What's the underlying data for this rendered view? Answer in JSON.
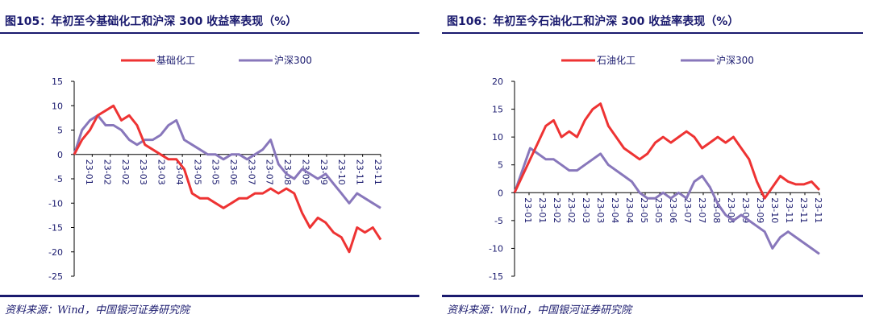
{
  "chart_data": [
    {
      "type": "line",
      "title": "图105：年初至今基础化工和沪深 300 收益率表现（%）",
      "source": "资料来源：Wind，中国银河证券研究院",
      "ylim": [
        -25,
        15
      ],
      "yticks": [
        15,
        10,
        5,
        0,
        -5,
        -10,
        -15,
        -20,
        -25
      ],
      "xticks": [
        "23-01",
        "23-02",
        "23-02",
        "23-03",
        "23-03",
        "23-04",
        "23-05",
        "23-05",
        "23-06",
        "23-07",
        "23-07",
        "23-08",
        "23-09",
        "23-09",
        "23-10",
        "23-11",
        "23-11"
      ],
      "legend": [
        "基础化工",
        "沪深300"
      ],
      "series": [
        {
          "name": "基础化工",
          "color": "#ee3333",
          "values": [
            0,
            3,
            5,
            8,
            9,
            10,
            7,
            8,
            6,
            2,
            1,
            0,
            -1,
            -1,
            -3,
            -8,
            -9,
            -9,
            -10,
            -11,
            -10,
            -9,
            -9,
            -8,
            -8,
            -7,
            -8,
            -7,
            -8,
            -12,
            -15,
            -13,
            -14,
            -16,
            -17,
            -20,
            -15,
            -16,
            -15,
            -17.5
          ]
        },
        {
          "name": "沪深300",
          "color": "#8877bb",
          "values": [
            0,
            5,
            7,
            8,
            6,
            6,
            5,
            3,
            2,
            3,
            3,
            4,
            6,
            7,
            3,
            2,
            1,
            0,
            0,
            -1,
            0,
            0,
            -1,
            0,
            1,
            3,
            -2,
            -4,
            -5,
            -3,
            -4,
            -5,
            -4,
            -6,
            -8,
            -10,
            -8,
            -9,
            -10,
            -11
          ]
        }
      ]
    },
    {
      "type": "line",
      "title": "图106：年初至今石油化工和沪深 300 收益率表现（%）",
      "source": "资料来源：Wind，中国银河证券研究院",
      "ylim": [
        -15,
        20
      ],
      "yticks": [
        20,
        15,
        10,
        5,
        0,
        -5,
        -10,
        -15
      ],
      "xticks": [
        "23-01",
        "23-01",
        "23-02",
        "23-02",
        "23-03",
        "23-03",
        "23-04",
        "23-04",
        "23-05",
        "23-05",
        "23-06",
        "23-07",
        "23-07",
        "23-08",
        "23-08",
        "23-09",
        "23-09",
        "23-10",
        "23-11",
        "23-11",
        "23-11"
      ],
      "legend": [
        "石油化工",
        "沪深300"
      ],
      "series": [
        {
          "name": "石油化工",
          "color": "#ee3333",
          "values": [
            0,
            3,
            6,
            9,
            12,
            13,
            10,
            11,
            10,
            13,
            15,
            16,
            12,
            10,
            8,
            7,
            6,
            7,
            9,
            10,
            9,
            10,
            11,
            10,
            8,
            9,
            10,
            9,
            10,
            8,
            6,
            2,
            -1,
            1,
            3,
            2,
            1.5,
            1.5,
            2,
            0.5
          ]
        },
        {
          "name": "沪深300",
          "color": "#8877bb",
          "values": [
            0,
            4,
            8,
            7,
            6,
            6,
            5,
            4,
            4,
            5,
            6,
            7,
            5,
            4,
            3,
            2,
            0,
            -1,
            -1,
            0,
            -1,
            0,
            -1,
            2,
            3,
            1,
            -2,
            -4,
            -5,
            -4,
            -5,
            -6,
            -7,
            -10,
            -8,
            -7,
            -8,
            -9,
            -10,
            -11
          ]
        }
      ]
    }
  ]
}
